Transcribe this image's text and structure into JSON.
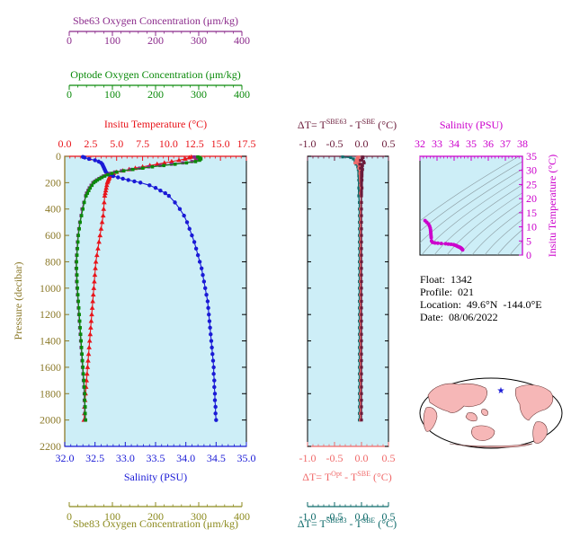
{
  "colors": {
    "sbe63": "#8b2a8b",
    "optode": "#0a8a0a",
    "sbe83": "#8c8a1e",
    "temp": "#e8151b",
    "salinity": "#1a1ad6",
    "pressure": "#8c7a2a",
    "dt_top": "#6b1b3a",
    "dt_opt": "#f06a6a",
    "dt_83": "#0e6a6a",
    "ts_axis": "#cc00cc",
    "panel_bg": "#cdeef7"
  },
  "labels": {
    "sbe63_axis": "Sbe63 Oxygen Concentration (μm/kg)",
    "optode_axis": "Optode Oxygen Concentration (μm/kg)",
    "temp_axis": "Insitu Temperature (°C)",
    "salinity_axis": "Salinity (PSU)",
    "pressure_axis": "Pressure (decibar)",
    "sbe83_axis": "Sbe83 Oxygen Concentration (μm/kg)",
    "dt_top_main": "ΔT= T",
    "dt_top_sup1": "SBE63",
    "dt_top_mid": " - T",
    "dt_top_sup2": "SBE",
    "dt_top_end": " (°C)",
    "dt_opt_main": "ΔT= T",
    "dt_opt_sup1": "Opt",
    "dt_opt_mid": " - T",
    "dt_opt_sup2": "SBE",
    "dt_opt_end": " (°C)",
    "dt_83_main": "ΔT= T",
    "dt_83_sup1": "SBE83",
    "dt_83_mid": " - T",
    "dt_83_sup2": "SBE",
    "dt_83_end": " (°C)",
    "ts_salinity_axis": "Salinity (PSU)",
    "ts_temp_axis": "Insitu Temperature (°C)"
  },
  "info": {
    "float": "Float:  1342",
    "profile": "Profile:  021",
    "location": "Location:  49.6°N  -144.0°E",
    "date": "Date:  08/06/2022"
  },
  "chart_data": [
    {
      "type": "line",
      "name": "profile",
      "ylim": [
        0,
        2200
      ],
      "yticks": [
        "0",
        "200",
        "400",
        "600",
        "800",
        "1000",
        "1200",
        "1400",
        "1600",
        "1800",
        "2000",
        "2200"
      ],
      "oxygen_xlim": [
        0,
        400
      ],
      "oxygen_ticks": [
        "0",
        "100",
        "200",
        "300",
        "400"
      ],
      "temp_xlim": [
        0.0,
        17.5
      ],
      "temp_ticks": [
        "0.0",
        "2.5",
        "5.0",
        "7.5",
        "10.0",
        "12.5",
        "15.0",
        "17.5"
      ],
      "sal_xlim": [
        32.0,
        35.0
      ],
      "sal_ticks": [
        "32.0",
        "32.5",
        "33.0",
        "33.5",
        "34.0",
        "34.5",
        "35.0"
      ],
      "pressure": [
        5,
        10,
        20,
        30,
        40,
        50,
        60,
        70,
        80,
        90,
        100,
        110,
        120,
        130,
        140,
        150,
        160,
        170,
        180,
        190,
        200,
        220,
        240,
        260,
        280,
        300,
        350,
        400,
        450,
        500,
        550,
        600,
        650,
        700,
        750,
        800,
        850,
        900,
        950,
        1000,
        1050,
        1100,
        1150,
        1200,
        1250,
        1300,
        1350,
        1400,
        1450,
        1500,
        1550,
        1600,
        1650,
        1700,
        1750,
        1800,
        1850,
        1900,
        1950,
        2000
      ],
      "series": [
        {
          "key": "temp",
          "values": [
            12.2,
            12.0,
            11.6,
            11.0,
            10.3,
            9.6,
            8.9,
            8.2,
            7.5,
            6.8,
            6.2,
            5.6,
            5.0,
            4.7,
            4.5,
            4.4,
            4.3,
            4.25,
            4.2,
            4.15,
            4.1,
            4.05,
            4.0,
            3.95,
            3.9,
            3.85,
            3.8,
            3.75,
            3.7,
            3.6,
            3.5,
            3.4,
            3.3,
            3.2,
            3.1,
            3.0,
            2.95,
            2.9,
            2.85,
            2.8,
            2.75,
            2.7,
            2.65,
            2.6,
            2.55,
            2.5,
            2.45,
            2.4,
            2.35,
            2.3,
            2.25,
            2.2,
            2.15,
            2.1,
            2.05,
            2.0,
            1.95,
            1.9,
            1.9,
            1.85
          ]
        },
        {
          "key": "salinity",
          "values": [
            32.3,
            32.33,
            32.4,
            32.5,
            32.56,
            32.6,
            32.62,
            32.63,
            32.64,
            32.65,
            32.66,
            32.67,
            32.68,
            32.7,
            32.74,
            32.8,
            32.88,
            32.96,
            33.05,
            33.15,
            33.25,
            33.4,
            33.5,
            33.58,
            33.66,
            33.72,
            33.82,
            33.9,
            33.97,
            34.02,
            34.06,
            34.1,
            34.14,
            34.17,
            34.2,
            34.23,
            34.26,
            34.28,
            34.3,
            34.32,
            34.34,
            34.36,
            34.37,
            34.38,
            34.39,
            34.4,
            34.41,
            34.42,
            34.43,
            34.44,
            34.45,
            34.46,
            34.46,
            34.47,
            34.47,
            34.48,
            34.48,
            34.49,
            34.49,
            34.5
          ]
        },
        {
          "key": "sbe63",
          "values": [
            285,
            290,
            292,
            290,
            280,
            260,
            235,
            210,
            185,
            165,
            145,
            125,
            110,
            100,
            92,
            85,
            80,
            75,
            70,
            66,
            62,
            58,
            54,
            51,
            48,
            46,
            42,
            38,
            36,
            33,
            31,
            29,
            28,
            27,
            26,
            25,
            25,
            26,
            26,
            27,
            28,
            29,
            30,
            31,
            32,
            33,
            34,
            35,
            36,
            37,
            38,
            39,
            40,
            41,
            42,
            43,
            43,
            44,
            44,
            45
          ]
        },
        {
          "key": "optode",
          "values": [
            293,
            298,
            300,
            297,
            288,
            268,
            243,
            218,
            193,
            172,
            150,
            130,
            114,
            104,
            95,
            88,
            82,
            77,
            72,
            68,
            64,
            60,
            56,
            53,
            50,
            47,
            43,
            40,
            37,
            34,
            32,
            30,
            29,
            28,
            27,
            26,
            26,
            27,
            27,
            28,
            29,
            30,
            31,
            32,
            33,
            34,
            35,
            36,
            37,
            38,
            39,
            40,
            41,
            42,
            43,
            44,
            44,
            45,
            45,
            46
          ]
        }
      ]
    },
    {
      "type": "scatter",
      "name": "delta-t",
      "xlim": [
        -1.0,
        0.5
      ],
      "xticks": [
        "-1.0",
        "-0.5",
        "0.0",
        "0.5"
      ],
      "ylim": [
        0,
        2200
      ],
      "pressure": [
        5,
        10,
        20,
        30,
        40,
        50,
        60,
        70,
        80,
        90,
        100,
        110,
        120,
        130,
        140,
        150,
        160,
        170,
        180,
        190,
        200,
        220,
        240,
        260,
        280,
        300,
        350,
        400,
        450,
        500,
        550,
        600,
        650,
        700,
        750,
        800,
        850,
        900,
        950,
        1000,
        1050,
        1100,
        1150,
        1200,
        1250,
        1300,
        1350,
        1400,
        1450,
        1500,
        1550,
        1600,
        1650,
        1700,
        1750,
        1800,
        1850,
        1900,
        1950,
        2000
      ],
      "series": [
        {
          "key": "dt_top",
          "values": [
            0.02,
            0.03,
            0.01,
            -0.02,
            0.04,
            0.05,
            -0.03,
            0.02,
            0.01,
            -0.02,
            0.02,
            0.01,
            0.0,
            0.01,
            0.0,
            0.01,
            0.0,
            0.0,
            0.01,
            0.0,
            0.0,
            0.0,
            0.01,
            0.0,
            0.0,
            0.0,
            0.0,
            0.0,
            0.0,
            0.0,
            0.0,
            0.0,
            0.0,
            0.0,
            0.0,
            0.0,
            0.0,
            0.0,
            0.0,
            0.0,
            0.0,
            0.0,
            0.0,
            0.0,
            0.0,
            0.0,
            0.0,
            0.0,
            0.0,
            0.0,
            0.0,
            0.0,
            0.0,
            0.0,
            0.0,
            0.0,
            0.0,
            0.0,
            0.0,
            0.0
          ]
        },
        {
          "key": "dt_opt",
          "values": [
            -0.05,
            -0.08,
            -0.06,
            -0.1,
            -0.04,
            -0.12,
            -0.06,
            -0.04,
            -0.03,
            -0.05,
            -0.03,
            -0.02,
            -0.02,
            -0.03,
            -0.02,
            -0.02,
            -0.02,
            -0.02,
            -0.01,
            -0.02,
            -0.01,
            -0.02,
            -0.01,
            -0.01,
            -0.02,
            -0.01,
            -0.01,
            -0.02,
            -0.02,
            -0.02,
            -0.02,
            -0.02,
            -0.02,
            -0.02,
            -0.02,
            -0.02,
            -0.02,
            -0.02,
            -0.02,
            -0.02,
            -0.02,
            -0.02,
            -0.02,
            -0.02,
            -0.02,
            -0.02,
            -0.02,
            -0.02,
            -0.02,
            -0.02,
            -0.02,
            -0.02,
            -0.02,
            -0.02,
            -0.02,
            -0.02,
            -0.02,
            -0.02,
            -0.02,
            -0.02
          ]
        },
        {
          "key": "dt_83",
          "values": [
            -0.35,
            -0.2,
            -0.15,
            -0.1,
            -0.12,
            -0.08,
            -0.1,
            -0.06,
            -0.07,
            -0.05,
            -0.06,
            -0.05,
            -0.04,
            -0.05,
            -0.04,
            -0.05,
            -0.04,
            -0.04,
            -0.05,
            -0.04,
            -0.04,
            -0.04,
            -0.05,
            -0.04,
            -0.04,
            -0.05,
            -0.04,
            -0.04,
            -0.04,
            -0.04,
            -0.04,
            -0.04,
            -0.04,
            -0.04,
            -0.04,
            -0.04,
            -0.04,
            -0.04,
            -0.04,
            -0.04,
            -0.04,
            -0.04,
            -0.04,
            -0.04,
            -0.04,
            -0.04,
            -0.04,
            -0.04,
            -0.04,
            -0.04,
            -0.04,
            -0.04,
            -0.04,
            -0.04,
            -0.04,
            -0.04,
            -0.04,
            -0.04,
            -0.04,
            -0.04
          ]
        }
      ]
    },
    {
      "type": "scatter",
      "name": "ts-diagram",
      "xlim": [
        32,
        38
      ],
      "xticks": [
        "32",
        "33",
        "34",
        "35",
        "36",
        "37",
        "38"
      ],
      "ylim": [
        0,
        35
      ],
      "yticks": [
        "0",
        "5",
        "10",
        "15",
        "20",
        "25",
        "30",
        "35"
      ],
      "points": [
        {
          "s": 32.3,
          "t": 12.2
        },
        {
          "s": 32.4,
          "t": 11.6
        },
        {
          "s": 32.5,
          "t": 11.0
        },
        {
          "s": 32.56,
          "t": 10.3
        },
        {
          "s": 32.6,
          "t": 9.6
        },
        {
          "s": 32.62,
          "t": 8.9
        },
        {
          "s": 32.63,
          "t": 8.2
        },
        {
          "s": 32.64,
          "t": 7.5
        },
        {
          "s": 32.65,
          "t": 6.8
        },
        {
          "s": 32.66,
          "t": 6.2
        },
        {
          "s": 32.68,
          "t": 5.0
        },
        {
          "s": 32.74,
          "t": 4.5
        },
        {
          "s": 32.88,
          "t": 4.3
        },
        {
          "s": 33.05,
          "t": 4.2
        },
        {
          "s": 33.25,
          "t": 4.1
        },
        {
          "s": 33.5,
          "t": 4.0
        },
        {
          "s": 33.66,
          "t": 3.9
        },
        {
          "s": 33.82,
          "t": 3.8
        },
        {
          "s": 33.97,
          "t": 3.7
        },
        {
          "s": 34.06,
          "t": 3.5
        },
        {
          "s": 34.14,
          "t": 3.3
        },
        {
          "s": 34.2,
          "t": 3.1
        },
        {
          "s": 34.26,
          "t": 2.95
        },
        {
          "s": 34.3,
          "t": 2.85
        },
        {
          "s": 34.34,
          "t": 2.75
        },
        {
          "s": 34.38,
          "t": 2.6
        },
        {
          "s": 34.4,
          "t": 2.5
        },
        {
          "s": 34.43,
          "t": 2.35
        },
        {
          "s": 34.46,
          "t": 2.2
        },
        {
          "s": 34.48,
          "t": 2.0
        },
        {
          "s": 34.5,
          "t": 1.85
        }
      ]
    }
  ]
}
